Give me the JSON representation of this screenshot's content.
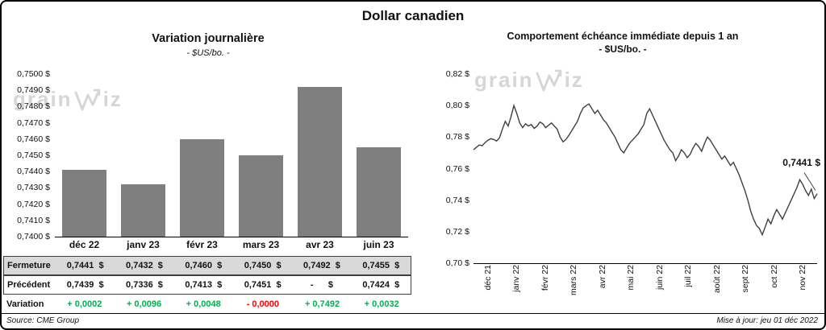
{
  "title": "Dollar canadien",
  "watermark": {
    "prefix": "grain",
    "suffix": "iz"
  },
  "colors": {
    "green": "#00B050",
    "red": "#FF0000",
    "bar": "#7F7F7F",
    "line": "#404040",
    "table_row_bg": "#D9D9D9"
  },
  "chart_data": [
    {
      "type": "bar",
      "title": "Variation journalière",
      "subtitle": "- $US/bo. -",
      "categories": [
        "déc 22",
        "janv 23",
        "févr 23",
        "mars 23",
        "avr 23",
        "juin 23"
      ],
      "values": [
        0.7441,
        0.7432,
        0.746,
        0.745,
        0.7492,
        0.7455
      ],
      "ylim": [
        0.74,
        0.75
      ],
      "y_tick_labels": [
        "0,7500 $",
        "0,7490 $",
        "0,7480 $",
        "0,7470 $",
        "0,7460 $",
        "0,7450 $",
        "0,7440 $",
        "0,7430 $",
        "0,7420 $",
        "0,7410 $",
        "0,7400 $"
      ],
      "grid": false,
      "legend": false
    },
    {
      "type": "line",
      "title": "Comportement échéance immédiate depuis 1 an",
      "subtitle": "- $US/bo. -",
      "x_labels": [
        "déc 21",
        "janv 22",
        "févr 22",
        "mars 22",
        "avr 22",
        "mai 22",
        "juin 22",
        "juil 22",
        "août 22",
        "sept 22",
        "oct 22",
        "nov 22"
      ],
      "ylim": [
        0.7,
        0.82
      ],
      "y_tick_labels": [
        "0,82 $",
        "0,80 $",
        "0,78 $",
        "0,76 $",
        "0,74 $",
        "0,72 $",
        "0,70 $"
      ],
      "annotation": "0,7441 $",
      "last_value": 0.7441,
      "grid": false,
      "legend": false,
      "values": [
        0.772,
        0.7735,
        0.775,
        0.7745,
        0.7765,
        0.778,
        0.779,
        0.7785,
        0.7775,
        0.7795,
        0.785,
        0.79,
        0.787,
        0.793,
        0.8,
        0.795,
        0.789,
        0.786,
        0.7885,
        0.787,
        0.788,
        0.7855,
        0.787,
        0.7895,
        0.7885,
        0.786,
        0.7875,
        0.789,
        0.787,
        0.785,
        0.78,
        0.777,
        0.7785,
        0.781,
        0.784,
        0.787,
        0.79,
        0.795,
        0.7985,
        0.8,
        0.801,
        0.798,
        0.795,
        0.797,
        0.794,
        0.791,
        0.789,
        0.786,
        0.783,
        0.78,
        0.776,
        0.772,
        0.77,
        0.773,
        0.776,
        0.778,
        0.78,
        0.782,
        0.785,
        0.788,
        0.795,
        0.798,
        0.794,
        0.79,
        0.786,
        0.782,
        0.778,
        0.775,
        0.772,
        0.77,
        0.765,
        0.768,
        0.772,
        0.77,
        0.767,
        0.769,
        0.773,
        0.776,
        0.774,
        0.771,
        0.776,
        0.78,
        0.778,
        0.775,
        0.772,
        0.769,
        0.766,
        0.768,
        0.765,
        0.762,
        0.764,
        0.76,
        0.756,
        0.751,
        0.746,
        0.74,
        0.733,
        0.728,
        0.724,
        0.722,
        0.718,
        0.723,
        0.728,
        0.725,
        0.73,
        0.734,
        0.731,
        0.728,
        0.732,
        0.736,
        0.74,
        0.744,
        0.748,
        0.753,
        0.75,
        0.746,
        0.743,
        0.747,
        0.741,
        0.7441
      ]
    }
  ],
  "table": {
    "rows": [
      {
        "label": "Fermeture",
        "style": "gray boxed",
        "values": [
          "0,7441  $",
          "0,7432  $",
          "0,7460  $",
          "0,7450  $",
          "0,7492  $",
          "0,7455  $"
        ]
      },
      {
        "label": "Précédent",
        "style": "boxed",
        "values": [
          "0,7439  $",
          "0,7336  $",
          "0,7413  $",
          "0,7451  $",
          "-      $",
          "0,7424  $"
        ]
      },
      {
        "label": "Variation",
        "style": "plain",
        "values": [
          "+ 0,0002",
          "+ 0,0096",
          "+ 0,0048",
          "- 0,0000",
          "+ 0,7492",
          "+ 0,0032"
        ],
        "value_colors": [
          "green",
          "green",
          "green",
          "red",
          "green",
          "green"
        ]
      }
    ]
  },
  "footer": {
    "source": "Source: CME Group",
    "updated": "Mise à jour: jeu 01 déc 2022"
  }
}
